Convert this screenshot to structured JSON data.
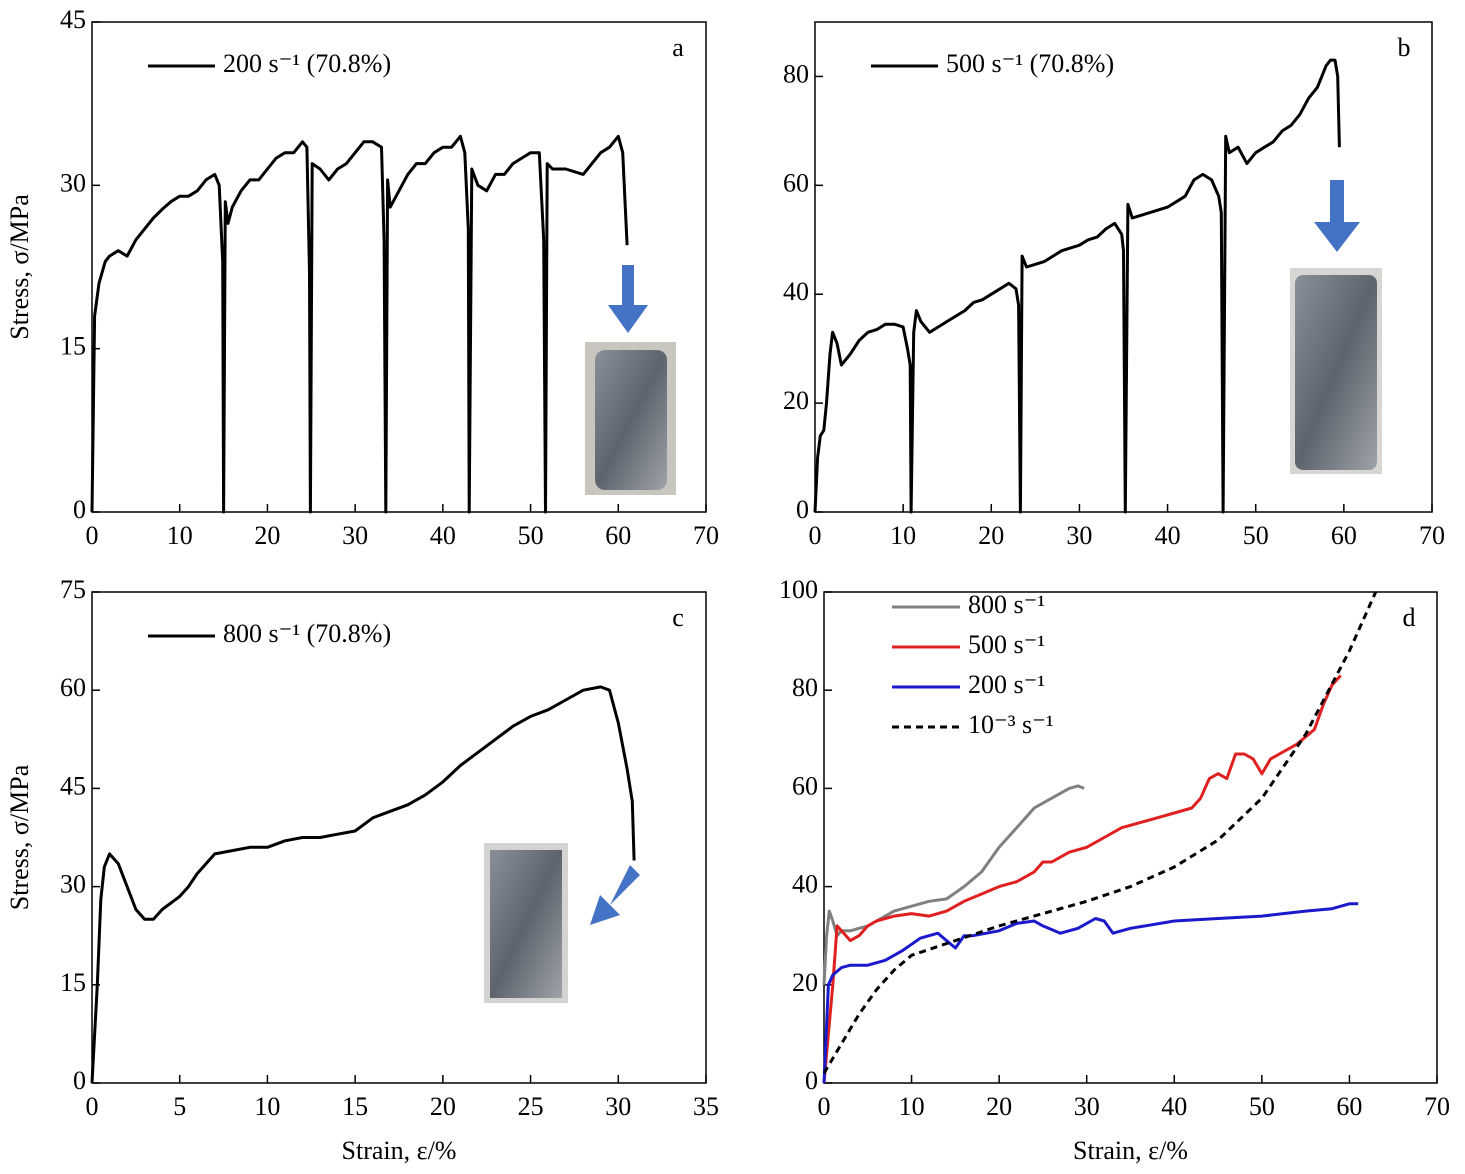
{
  "chart_data": [
    {
      "type": "line",
      "annotation": "a",
      "ylabel": "Stress, σ/MPa",
      "xlim": [
        0,
        70
      ],
      "xticks": [
        0,
        10,
        20,
        30,
        40,
        50,
        60,
        70
      ],
      "ylim": [
        0,
        45
      ],
      "yticks": [
        0,
        15,
        30,
        45
      ],
      "series": [
        {
          "name": "200 s⁻¹ (70.8%)",
          "color": "#000000",
          "x": [
            0,
            0.3,
            0.8,
            1.5,
            2,
            3,
            4,
            5,
            6,
            7,
            8,
            9,
            10,
            11,
            12,
            13,
            14,
            14.5,
            14.9,
            15.0,
            15.2,
            15.5,
            16,
            17,
            18,
            19,
            20,
            21,
            22,
            23,
            24,
            24.5,
            24.8,
            24.9,
            25.1,
            26,
            27,
            28,
            29,
            30,
            31,
            32,
            33,
            33.3,
            33.5,
            33.7,
            34,
            35,
            36,
            37,
            38,
            39,
            40,
            41,
            42,
            42.5,
            42.9,
            43.0,
            43.3,
            44,
            45,
            46,
            47,
            48,
            49,
            50,
            51,
            51.5,
            51.7,
            51.9,
            52.5,
            54,
            56,
            58,
            59,
            60,
            60.5,
            61
          ],
          "values": [
            0,
            18,
            21,
            23,
            23.5,
            24,
            23.5,
            25,
            26,
            27,
            27.8,
            28.5,
            29,
            29,
            29.5,
            30.5,
            31,
            30,
            23,
            0,
            28.5,
            26.5,
            28,
            29.5,
            30.5,
            30.5,
            31.5,
            32.5,
            33,
            33,
            34,
            33.5,
            22,
            0,
            32,
            31.5,
            30.5,
            31.5,
            32,
            33,
            34,
            34,
            33.5,
            25,
            0,
            30.5,
            28,
            29.5,
            31,
            32,
            32,
            33,
            33.5,
            33.5,
            34.5,
            33,
            26,
            0,
            31.5,
            30,
            29.5,
            31,
            31,
            32,
            32.5,
            33,
            33,
            25,
            0,
            32,
            31.5,
            31.5,
            31,
            33,
            33.5,
            34.5,
            33,
            24.5
          ]
        }
      ]
    },
    {
      "type": "line",
      "annotation": "b",
      "xlim": [
        0,
        70
      ],
      "xticks": [
        0,
        10,
        20,
        30,
        40,
        50,
        60,
        70
      ],
      "ylim": [
        0,
        90
      ],
      "yticks": [
        0,
        20,
        40,
        60,
        80
      ],
      "series": [
        {
          "name": "500 s⁻¹ (70.8%)",
          "color": "#000000",
          "x": [
            0,
            0.3,
            0.6,
            1,
            1.3,
            1.7,
            2,
            2.5,
            3,
            4,
            5,
            6,
            7,
            8,
            9,
            10,
            10.5,
            10.8,
            10.9,
            11.2,
            11.5,
            12,
            13,
            14,
            15,
            16,
            17,
            18,
            19,
            20,
            21,
            22,
            22.8,
            23.1,
            23.3,
            23.5,
            24,
            25,
            26,
            27,
            28,
            29,
            30,
            31,
            32,
            33,
            34,
            34.8,
            35.0,
            35.2,
            35.5,
            36,
            37,
            38,
            39,
            40,
            41,
            42,
            43,
            44,
            45,
            45.8,
            46.1,
            46.3,
            46.6,
            47,
            48,
            49,
            50,
            51,
            52,
            53,
            54,
            55,
            56,
            57,
            58,
            58.5,
            59,
            59.3,
            59.5
          ],
          "values": [
            0,
            10,
            14,
            15,
            20,
            29,
            33,
            31,
            27,
            29,
            31.5,
            33,
            33.5,
            34.5,
            34.5,
            34,
            30,
            27,
            0,
            33,
            37,
            35,
            33,
            34,
            35,
            36,
            37,
            38.5,
            39,
            40,
            41,
            42,
            41,
            38,
            0,
            47,
            45,
            45.5,
            46,
            47,
            48,
            48.5,
            49,
            50,
            50.5,
            52,
            53,
            51,
            48,
            0,
            56.5,
            54,
            54.5,
            55,
            55.5,
            56,
            57,
            58,
            61,
            62,
            61,
            58,
            55,
            0,
            69,
            66,
            67,
            64,
            66,
            67,
            68,
            70,
            71,
            73,
            76,
            78,
            82,
            83,
            83,
            80,
            67
          ]
        }
      ]
    },
    {
      "type": "line",
      "annotation": "c",
      "ylabel": "Stress, σ/MPa",
      "xlabel": "Strain, ε/%",
      "xlim": [
        0,
        35
      ],
      "xticks": [
        0,
        5,
        10,
        15,
        20,
        25,
        30,
        35
      ],
      "ylim": [
        0,
        75
      ],
      "yticks": [
        0,
        15,
        30,
        45,
        60,
        75
      ],
      "series": [
        {
          "name": "800 s⁻¹ (70.8%)",
          "color": "#000000",
          "x": [
            0,
            0.3,
            0.5,
            0.7,
            1,
            1.5,
            2,
            2.5,
            3,
            3.5,
            4,
            5,
            5.5,
            6,
            7,
            8,
            9,
            10,
            11,
            12,
            13,
            14,
            15,
            16,
            17,
            18,
            19,
            20,
            21,
            22,
            23,
            24,
            25,
            26,
            27,
            28,
            29,
            29.5,
            30,
            30.5,
            30.8,
            30.9
          ],
          "values": [
            0,
            15,
            28,
            33,
            35,
            33.5,
            30,
            26.5,
            25,
            25,
            26.5,
            28.5,
            30,
            32,
            35,
            35.5,
            36,
            36,
            37,
            37.5,
            37.5,
            38,
            38.5,
            40.5,
            41.5,
            42.5,
            44,
            46,
            48.5,
            50.5,
            52.5,
            54.5,
            56,
            57,
            58.5,
            60,
            60.5,
            60,
            55,
            48,
            43,
            34
          ]
        }
      ]
    },
    {
      "type": "line",
      "annotation": "d",
      "xlabel": "Strain, ε/%",
      "xlim": [
        0,
        70
      ],
      "xticks": [
        0,
        10,
        20,
        30,
        40,
        50,
        60,
        70
      ],
      "ylim": [
        0,
        100
      ],
      "yticks": [
        0,
        20,
        40,
        60,
        80,
        100
      ],
      "series": [
        {
          "name": "800 s⁻¹",
          "color": "#808080",
          "x": [
            0,
            0.3,
            0.6,
            1,
            1.5,
            2,
            3,
            4,
            5,
            6,
            7,
            8,
            10,
            12,
            14,
            16,
            18,
            20,
            22,
            24,
            26,
            28,
            29,
            29.7
          ],
          "values": [
            20,
            30,
            35,
            33,
            30,
            31,
            31,
            31.5,
            32,
            33,
            34,
            35,
            36,
            37,
            37.5,
            40,
            43,
            48,
            52,
            56,
            58,
            60,
            60.5,
            60
          ]
        },
        {
          "name": "500 s⁻¹",
          "color": "#e02020",
          "x": [
            0,
            0.5,
            1,
            1.5,
            2,
            3,
            4,
            5,
            6,
            8,
            10,
            12,
            14,
            16,
            18,
            20,
            22,
            24,
            25,
            26,
            28,
            30,
            32,
            34,
            36,
            38,
            40,
            42,
            43,
            44,
            45,
            46,
            47,
            48,
            49,
            50,
            51,
            52,
            54,
            56,
            57,
            58,
            59
          ],
          "values": [
            0,
            10,
            20,
            32,
            31,
            29,
            30,
            32,
            33,
            34,
            34.5,
            34,
            35,
            37,
            38.5,
            40,
            41,
            43,
            45,
            45,
            47,
            48,
            50,
            52,
            53,
            54,
            55,
            56,
            58,
            62,
            63,
            62,
            67,
            67,
            66,
            63,
            66,
            67,
            69,
            72,
            77,
            81,
            83
          ]
        },
        {
          "name": "200 s⁻¹",
          "color": "#1a1acc",
          "x": [
            0,
            0.5,
            1,
            2,
            3,
            5,
            7,
            9,
            11,
            13,
            14,
            15,
            16,
            17,
            20,
            22,
            24,
            25,
            27,
            29,
            31,
            32,
            33,
            35,
            40,
            45,
            50,
            55,
            58,
            60,
            61
          ],
          "values": [
            0,
            20,
            22,
            23.5,
            24,
            24,
            25,
            27,
            29.5,
            30.5,
            29,
            27.5,
            30,
            30,
            31,
            32.5,
            33,
            32,
            30.5,
            31.5,
            33.5,
            33,
            30.5,
            31.5,
            33,
            33.5,
            34,
            35,
            35.5,
            36.5,
            36.5
          ]
        },
        {
          "name": "10⁻³ s⁻¹",
          "color": "#000000",
          "linestyle": "dashed",
          "x": [
            0,
            2,
            4,
            6,
            8,
            10,
            15,
            20,
            25,
            30,
            35,
            40,
            45,
            50,
            55,
            60,
            63
          ],
          "values": [
            2,
            8,
            14,
            19,
            23,
            26,
            29,
            32,
            34.5,
            37,
            40,
            44,
            49.5,
            58,
            71,
            88,
            100
          ]
        }
      ]
    }
  ]
}
